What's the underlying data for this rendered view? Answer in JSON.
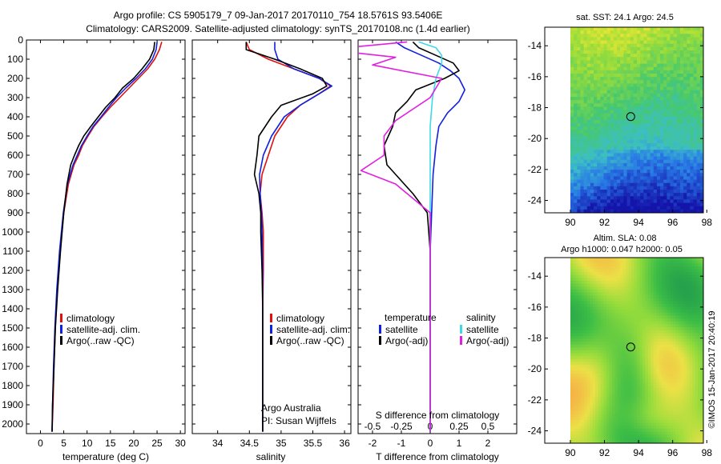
{
  "header": {
    "line1": "Argo profile: CS 5905179_7 09-Jan-2017 20170110_754 18.5761S 93.5406E",
    "line2": "Climatology: CARS2009. Satellite-adjusted climatology: synTS_20170108.nc (1.4d earlier)"
  },
  "colors": {
    "climatology": "#e01010",
    "satellite": "#1020e0",
    "argo": "#000000",
    "salinity_sat": "#40d8e8",
    "salinity_argo": "#e020e0"
  },
  "chart_data": [
    {
      "id": "temperature",
      "type": "line",
      "xlabel": "temperature (deg C)",
      "xlim": [
        -3,
        31
      ],
      "ylim": [
        0,
        2050
      ],
      "xticks": [
        "0",
        "5",
        "10",
        "15",
        "20",
        "25",
        "30"
      ],
      "xtick_values": [
        0,
        5,
        10,
        15,
        20,
        25,
        30
      ],
      "yticks": [
        "0",
        "100",
        "200",
        "300",
        "400",
        "500",
        "600",
        "700",
        "800",
        "900",
        "1000",
        "1100",
        "1200",
        "1300",
        "1400",
        "1500",
        "1600",
        "1700",
        "1800",
        "1900",
        "2000"
      ],
      "ytick_values": [
        0,
        100,
        200,
        300,
        400,
        500,
        600,
        700,
        800,
        900,
        1000,
        1100,
        1200,
        1300,
        1400,
        1500,
        1600,
        1700,
        1800,
        1900,
        2000
      ],
      "legend": [
        "climatology",
        "satellite-adj. clim.",
        "Argo(..raw -QC)"
      ],
      "series": [
        {
          "name": "climatology",
          "color": "#e01010",
          "x": [
            26.0,
            25.5,
            24.5,
            23.0,
            21.0,
            19.0,
            17.0,
            15.0,
            13.2,
            11.5,
            10.2,
            9.0,
            8.2,
            7.2,
            6.0,
            5.0,
            4.2,
            3.6,
            3.2,
            2.9,
            2.7,
            2.5
          ],
          "y": [
            10,
            50,
            100,
            150,
            200,
            250,
            300,
            350,
            400,
            450,
            500,
            550,
            600,
            650,
            750,
            900,
            1100,
            1300,
            1500,
            1700,
            1900,
            2040
          ]
        },
        {
          "name": "satellite-adj. clim.",
          "color": "#1020e0",
          "x": [
            25.0,
            24.8,
            24.0,
            22.5,
            20.5,
            18.3,
            16.3,
            14.6,
            13.0,
            11.3,
            10.0,
            8.8,
            7.9,
            7.0,
            5.8,
            4.9,
            4.1,
            3.5,
            3.1,
            2.8,
            2.6,
            2.5
          ],
          "y": [
            10,
            50,
            100,
            150,
            200,
            250,
            300,
            350,
            400,
            450,
            500,
            550,
            600,
            650,
            750,
            900,
            1100,
            1300,
            1500,
            1700,
            1900,
            2040
          ]
        },
        {
          "name": "Argo(..raw -QC)",
          "color": "#000000",
          "x": [
            24.5,
            24.3,
            23.4,
            21.8,
            20.0,
            17.6,
            16.0,
            14.0,
            12.4,
            10.8,
            9.3,
            8.2,
            7.3,
            6.5,
            5.7,
            5.0,
            4.3,
            3.7,
            3.2,
            2.9,
            2.6,
            2.5
          ],
          "y": [
            10,
            50,
            100,
            150,
            200,
            250,
            300,
            350,
            400,
            450,
            500,
            550,
            600,
            650,
            750,
            900,
            1100,
            1300,
            1500,
            1700,
            1900,
            2040
          ]
        }
      ]
    },
    {
      "id": "salinity",
      "type": "line",
      "xlabel": "salinity",
      "xlim": [
        33.6,
        36.1
      ],
      "ylim": [
        0,
        2050
      ],
      "xticks": [
        "34",
        "34.5",
        "35",
        "35.5",
        "36"
      ],
      "xtick_values": [
        34,
        34.5,
        35,
        35.5,
        36
      ],
      "legend": [
        "climatology",
        "satellite-adj. clim.",
        "Argo(..raw -QC)"
      ],
      "annotation": [
        "Argo Australia",
        "PI: Susan Wijffels"
      ],
      "series": [
        {
          "name": "climatology",
          "color": "#e01010",
          "x": [
            34.45,
            34.5,
            34.8,
            35.2,
            35.6,
            35.78,
            35.6,
            35.3,
            35.1,
            34.9,
            34.8,
            34.7,
            34.67,
            34.7,
            34.72,
            34.72,
            34.71,
            34.71,
            34.71,
            34.71
          ],
          "y": [
            10,
            50,
            100,
            150,
            200,
            240,
            280,
            340,
            400,
            500,
            600,
            700,
            800,
            900,
            1000,
            1200,
            1400,
            1600,
            1800,
            2040
          ]
        },
        {
          "name": "satellite-adj. clim.",
          "color": "#1020e0",
          "x": [
            34.9,
            34.9,
            34.95,
            35.2,
            35.6,
            35.8,
            35.6,
            35.3,
            35.05,
            34.85,
            34.72,
            34.66,
            34.67,
            34.69,
            34.7,
            34.71,
            34.71,
            34.71,
            34.71,
            34.71
          ],
          "y": [
            10,
            50,
            100,
            150,
            200,
            240,
            280,
            340,
            400,
            500,
            600,
            700,
            800,
            900,
            1000,
            1200,
            1400,
            1600,
            1800,
            2040
          ]
        },
        {
          "name": "Argo(..raw -QC)",
          "color": "#000000",
          "x": [
            34.45,
            34.45,
            34.9,
            35.3,
            35.65,
            35.72,
            35.5,
            35.0,
            34.85,
            34.65,
            34.62,
            34.58,
            34.65,
            34.68,
            34.68,
            34.7,
            34.71,
            34.71,
            34.71,
            34.71
          ],
          "y": [
            10,
            50,
            100,
            150,
            200,
            240,
            280,
            340,
            400,
            500,
            600,
            700,
            800,
            900,
            1000,
            1200,
            1400,
            1600,
            1800,
            2040
          ]
        }
      ]
    },
    {
      "id": "difference",
      "type": "line",
      "xlabel": "T difference from climatology",
      "xlabel2": "S difference from climatology",
      "xlim": [
        -2.5,
        3
      ],
      "ylim": [
        0,
        2050
      ],
      "xticks": [
        "-2",
        "-1",
        "0",
        "1",
        "2"
      ],
      "xtick_values": [
        -2,
        -1,
        0,
        1,
        2
      ],
      "sxticks": [
        "-0.5",
        "-0.25",
        "0",
        "0.25",
        "0.5"
      ],
      "sxtick_values": [
        -0.5,
        -0.25,
        0,
        0.25,
        0.5
      ],
      "legend_temperature": [
        "temperature",
        "satellite",
        "Argo(-adj)"
      ],
      "legend_salinity": [
        "salinity",
        "satellite",
        "Argo(-adj)"
      ],
      "series": [
        {
          "name": "temperature satellite",
          "color": "#1020e0",
          "x": [
            -1.2,
            -0.9,
            -0.3,
            0.3,
            0.7,
            1.0,
            1.2,
            1.0,
            0.6,
            0.3,
            0.2,
            0.1,
            0.05,
            0.0,
            0.0,
            0.0,
            0.0,
            0.0
          ],
          "y": [
            10,
            40,
            80,
            120,
            160,
            200,
            260,
            320,
            380,
            450,
            550,
            700,
            900,
            1100,
            1300,
            1500,
            1800,
            2040
          ]
        },
        {
          "name": "temperature Argo(-adj)",
          "color": "#000000",
          "x": [
            -0.6,
            -0.4,
            0.2,
            0.8,
            1.0,
            0.5,
            -0.5,
            -0.8,
            -1.2,
            -1.3,
            -1.6,
            -1.5,
            -1.2,
            -0.6,
            -0.1,
            0.0,
            0.0,
            0.0,
            0.0
          ],
          "y": [
            10,
            40,
            80,
            120,
            160,
            200,
            260,
            320,
            380,
            450,
            550,
            650,
            700,
            800,
            900,
            1100,
            1400,
            1800,
            2040
          ]
        },
        {
          "name": "salinity satellite",
          "color": "#40d8e8",
          "x": [
            -0.1,
            0.05,
            0.1,
            0.1,
            0.05,
            0.02,
            0.0,
            0.0,
            0.0,
            0.0,
            0.0,
            0.0,
            0.0,
            0.0
          ],
          "y": [
            10,
            40,
            80,
            120,
            200,
            300,
            450,
            600,
            800,
            1000,
            1300,
            1600,
            1900,
            2040
          ]
        },
        {
          "name": "salinity Argo(-adj)",
          "color": "#e020e0",
          "x": [
            -0.2,
            -0.9,
            -0.3,
            -0.5,
            0.1,
            0.0,
            -0.3,
            -0.4,
            -0.4,
            -0.6,
            -0.3,
            0.0,
            0.0,
            0.0
          ],
          "y": [
            10,
            50,
            90,
            130,
            200,
            300,
            420,
            500,
            600,
            680,
            750,
            900,
            1300,
            2040
          ]
        }
      ]
    }
  ],
  "maps": {
    "sst": {
      "title": "sat. SST: 24.1  Argo: 24.5",
      "yticks": [
        "-14",
        "-16",
        "-18",
        "-20",
        "-22",
        "-24"
      ],
      "xticks": [
        "90",
        "92",
        "94",
        "96",
        "98"
      ],
      "marker": {
        "lon": 93.54,
        "lat": -18.58
      }
    },
    "sla": {
      "title1": "Altim. SLA: 0.08",
      "title2": "Argo h1000: 0.047 h2000: 0.05",
      "yticks": [
        "-14",
        "-16",
        "-18",
        "-20",
        "-22",
        "-24"
      ],
      "xticks": [
        "90",
        "92",
        "94",
        "96",
        "98"
      ],
      "marker": {
        "lon": 93.54,
        "lat": -18.58
      }
    },
    "credit": "©IMOS 15-Jan-2017 20:40:19"
  }
}
